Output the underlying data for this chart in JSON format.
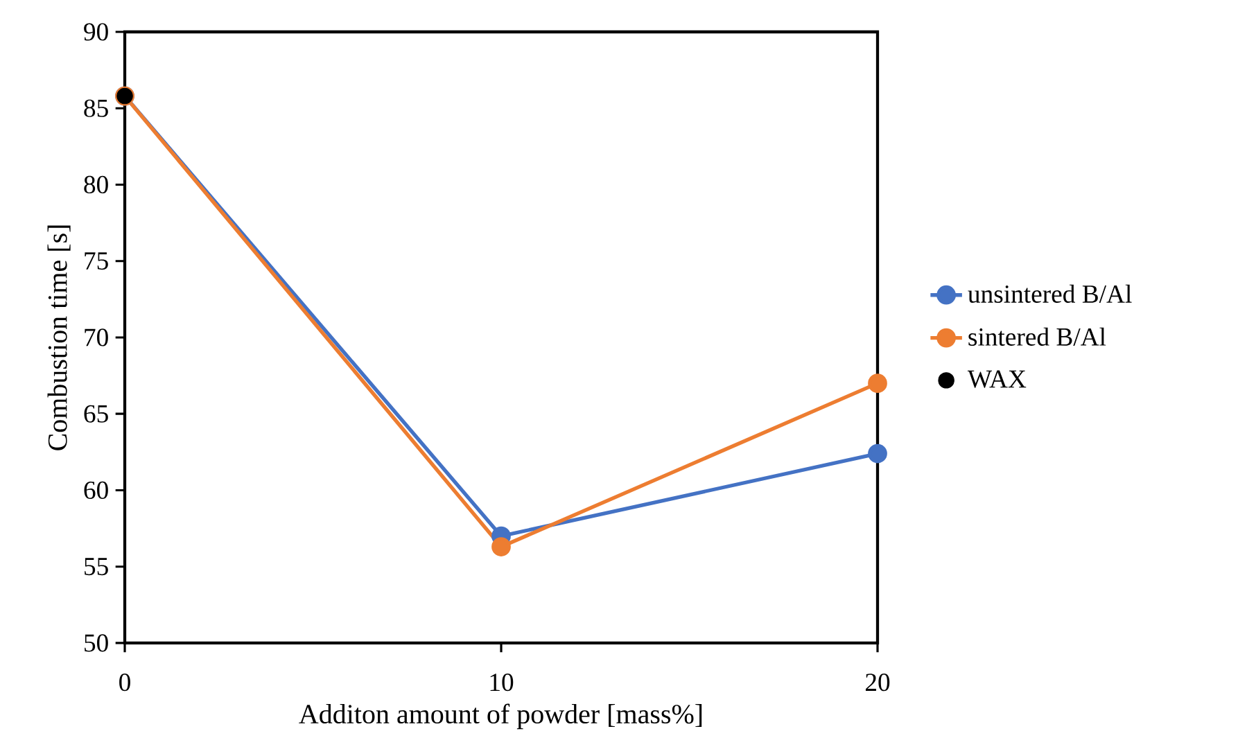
{
  "chart_data": {
    "type": "line",
    "xlabel": "Additon amount of powder [mass%]",
    "ylabel": "Combustion time [s]",
    "x": [
      0,
      10,
      20
    ],
    "xlim": [
      0,
      20
    ],
    "xticks": [
      0,
      10,
      20
    ],
    "ylim": [
      50,
      90
    ],
    "yticks": [
      50,
      55,
      60,
      65,
      70,
      75,
      80,
      85,
      90
    ],
    "grid": false,
    "legend": "right",
    "marker": "circle",
    "line_style": "solid",
    "series": [
      {
        "name": "unsintered B/Al",
        "color": "#4472c4",
        "values": [
          85.8,
          57.0,
          62.4
        ]
      },
      {
        "name": "sintered B/Al",
        "color": "#ed7d31",
        "values": [
          85.8,
          56.3,
          67.0
        ]
      },
      {
        "name": "WAX",
        "type": "scatter",
        "color": "#000000",
        "x": [
          0
        ],
        "values": [
          85.8
        ]
      }
    ]
  }
}
